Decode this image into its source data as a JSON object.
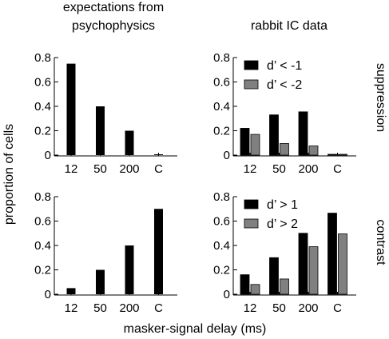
{
  "figure": {
    "col_titles": [
      [
        "expectations from",
        "psychophysics"
      ],
      [
        "rabbit IC data"
      ]
    ],
    "row_labels": [
      "suppression",
      "contrast"
    ],
    "ylabel": "proportion of cells",
    "xlabel": "masker-signal delay (ms)"
  },
  "colors": {
    "series1": "#000000",
    "series2": "#808080",
    "axis": "#000000"
  },
  "chart_data": [
    {
      "type": "bar",
      "panel": "top-left",
      "categories": [
        "12",
        "50",
        "200",
        "C"
      ],
      "series": [
        {
          "values": [
            0.75,
            0.4,
            0.2,
            0.005
          ]
        }
      ],
      "ylim": [
        0,
        0.8
      ],
      "yticks": [
        "0",
        "0.2",
        "0.4",
        "0.6",
        "0.8"
      ],
      "legend": []
    },
    {
      "type": "bar",
      "panel": "top-right",
      "categories": [
        "12",
        "50",
        "200",
        "C"
      ],
      "series": [
        {
          "name": "d’ < -1",
          "values": [
            0.22,
            0.33,
            0.355,
            0.005
          ]
        },
        {
          "name": "d’ < -2",
          "values": [
            0.17,
            0.095,
            0.075,
            0.005
          ]
        }
      ],
      "ylim": [
        0,
        0.8
      ],
      "yticks": [
        "0",
        "0.2",
        "0.4",
        "0.6",
        "0.8"
      ],
      "legend": [
        "d’ < -1",
        "d’ < -2"
      ]
    },
    {
      "type": "bar",
      "panel": "bottom-left",
      "categories": [
        "12",
        "50",
        "200",
        "C"
      ],
      "series": [
        {
          "values": [
            0.05,
            0.2,
            0.4,
            0.7
          ]
        }
      ],
      "ylim": [
        0,
        0.8
      ],
      "yticks": [
        "0",
        "0.2",
        "0.4",
        "0.6",
        "0.8"
      ],
      "legend": []
    },
    {
      "type": "bar",
      "panel": "bottom-right",
      "categories": [
        "12",
        "50",
        "200",
        "C"
      ],
      "series": [
        {
          "name": "d’ > 1",
          "values": [
            0.16,
            0.3,
            0.5,
            0.665
          ]
        },
        {
          "name": "d’ > 2",
          "values": [
            0.08,
            0.125,
            0.39,
            0.495
          ]
        }
      ],
      "ylim": [
        0,
        0.8
      ],
      "yticks": [
        "0",
        "0.2",
        "0.4",
        "0.6",
        "0.8"
      ],
      "legend": [
        "d’ > 1",
        "d’ > 2"
      ]
    }
  ]
}
